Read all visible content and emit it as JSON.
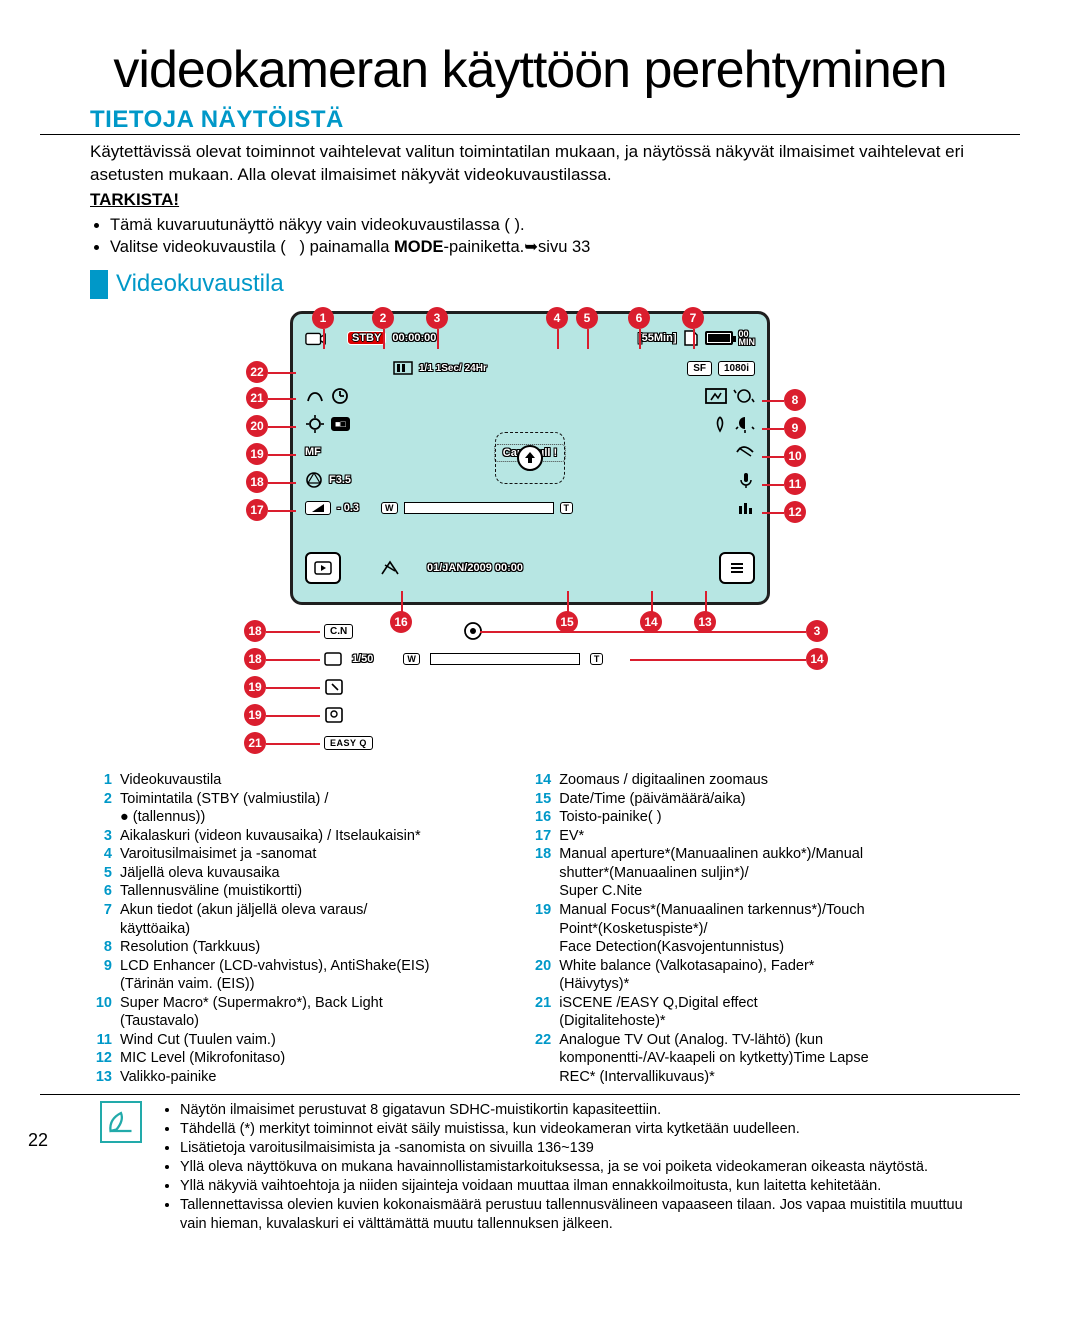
{
  "page_number": "22",
  "main_title": "videokameran käyttöön perehtyminen",
  "section_title": "TIETOJA NÄYTÖISTÄ",
  "intro_p1": "Käytettävissä olevat toiminnot vaihtelevat valitun toimintatilan mukaan, ja näytössä näkyvät ilmaisimet vaihtelevat eri asetusten mukaan. Alla olevat ilmaisimet näkyvät videokuvaustilassa.",
  "check_heading": "TARKISTA!",
  "bullets": [
    "Tämä kuvaruutunäyttö näkyy vain videokuvaustilassa (      ).",
    "Valitse videokuvaustila (      ) painamalla MODE-painiketta.➥sivu 33"
  ],
  "subsection_title": "Videokuvaustila",
  "lcd": {
    "stby": "STBY",
    "time": "00:00:00",
    "remain": "[55Min]",
    "min_badge": "00\nMIN",
    "line2_text": "1Sec/ 24Hr",
    "resolution": "1080i",
    "sf_label": "SF",
    "mf_label": "MF",
    "card_full": "Card Full !",
    "f_stop": "F3.5",
    "ev_val": "- 0.3",
    "date": "01/JAN/2009 00:00",
    "cn": "C.N",
    "shutter": "1/50",
    "easyq": "EASY Q"
  },
  "markers_top": [
    "1",
    "2",
    "3",
    "4",
    "5",
    "6",
    "7"
  ],
  "markers_right": [
    "8",
    "9",
    "10",
    "11",
    "12"
  ],
  "markers_left": [
    "22",
    "21",
    "20",
    "19",
    "18",
    "17"
  ],
  "markers_bottom_inside": [
    "16",
    "15",
    "14",
    "13"
  ],
  "aux_markers_left": [
    "18",
    "18",
    "19",
    "19",
    "21"
  ],
  "aux_markers_right": [
    "3",
    "14"
  ],
  "legend_left": [
    {
      "n": "1",
      "t": "Videokuvaustila"
    },
    {
      "n": "2",
      "t": "Toimintatila (STBY (valmiustila) /"
    },
    {
      "n": "",
      "t": "● (tallennus))"
    },
    {
      "n": "3",
      "t": "Aikalaskuri (videon kuvausaika) / Itselaukaisin*"
    },
    {
      "n": "4",
      "t": "Varoitusilmaisimet ja -sanomat"
    },
    {
      "n": "5",
      "t": "Jäljellä oleva kuvausaika"
    },
    {
      "n": "6",
      "t": "Tallennusväline (muistikortti)"
    },
    {
      "n": "7",
      "t": "Akun tiedot (akun jäljellä oleva varaus/"
    },
    {
      "n": "",
      "t": "käyttöaika)"
    },
    {
      "n": "8",
      "t": "Resolution (Tarkkuus)"
    },
    {
      "n": "9",
      "t": "LCD Enhancer (LCD-vahvistus), AntiShake(EIS)"
    },
    {
      "n": "",
      "t": "(Tärinän vaim. (EIS))"
    },
    {
      "n": "10",
      "t": "Super Macro* (Supermakro*), Back Light"
    },
    {
      "n": "",
      "t": "(Taustavalo)"
    },
    {
      "n": "11",
      "t": "Wind Cut (Tuulen vaim.)"
    },
    {
      "n": "12",
      "t": "MIC Level (Mikrofonitaso)"
    },
    {
      "n": "13",
      "t": "Valikko-painike"
    }
  ],
  "legend_right": [
    {
      "n": "14",
      "t": "Zoomaus / digitaalinen zoomaus"
    },
    {
      "n": "15",
      "t": "Date/Time (päivämäärä/aika)"
    },
    {
      "n": "16",
      "t": "Toisto-painike(     )"
    },
    {
      "n": "17",
      "t": "EV*"
    },
    {
      "n": "18",
      "t": "Manual aperture*(Manuaalinen aukko*)/Manual"
    },
    {
      "n": "",
      "t": "shutter*(Manuaalinen suljin*)/"
    },
    {
      "n": "",
      "t": "Super C.Nite"
    },
    {
      "n": "19",
      "t": "Manual Focus*(Manuaalinen tarkennus*)/Touch"
    },
    {
      "n": "",
      "t": "Point*(Kosketuspiste*)/"
    },
    {
      "n": "",
      "t": "Face Detection(Kasvojentunnistus)"
    },
    {
      "n": "20",
      "t": "White balance (Valkotasapaino), Fader*"
    },
    {
      "n": "",
      "t": "(Häivytys)*"
    },
    {
      "n": "21",
      "t": "iSCENE /EASY Q,Digital effect"
    },
    {
      "n": "",
      "t": "(Digitalitehoste)*"
    },
    {
      "n": "22",
      "t": "Analogue TV Out (Analog. TV-lähtö) (kun"
    },
    {
      "n": "",
      "t": "komponentti-/AV-kaapeli on kytketty)Time Lapse"
    },
    {
      "n": "",
      "t": "REC* (Intervallikuvaus)*"
    }
  ],
  "notes": [
    "Näytön ilmaisimet perustuvat 8 gigatavun SDHC-muistikortin kapasiteettiin.",
    "Tähdellä (*) merkityt toiminnot eivät säily muistissa, kun videokameran virta kytketään uudelleen.",
    "Lisätietoja varoitusilmaisimista ja -sanomista on sivuilla 136~139",
    "Yllä oleva näyttökuva on mukana havainnollistamistarkoituksessa, ja se voi poiketa videokameran oikeasta näytöstä.",
    "Yllä näkyviä vaihtoehtoja ja niiden sijainteja voidaan muuttaa ilman ennakkoilmoitusta, kun laitetta kehitetään.",
    "Tallennettavissa olevien kuvien kokonaismäärä perustuu tallennusvälineen vapaaseen tilaan. Jos vapaa muistitila muuttuu vain hieman, kuvalaskuri ei välttämättä muutu tallennuksen jälkeen."
  ],
  "colors": {
    "teal": "#0098c8",
    "marker": "#da1e2e",
    "lcd_bg": "#b7e6e3"
  }
}
